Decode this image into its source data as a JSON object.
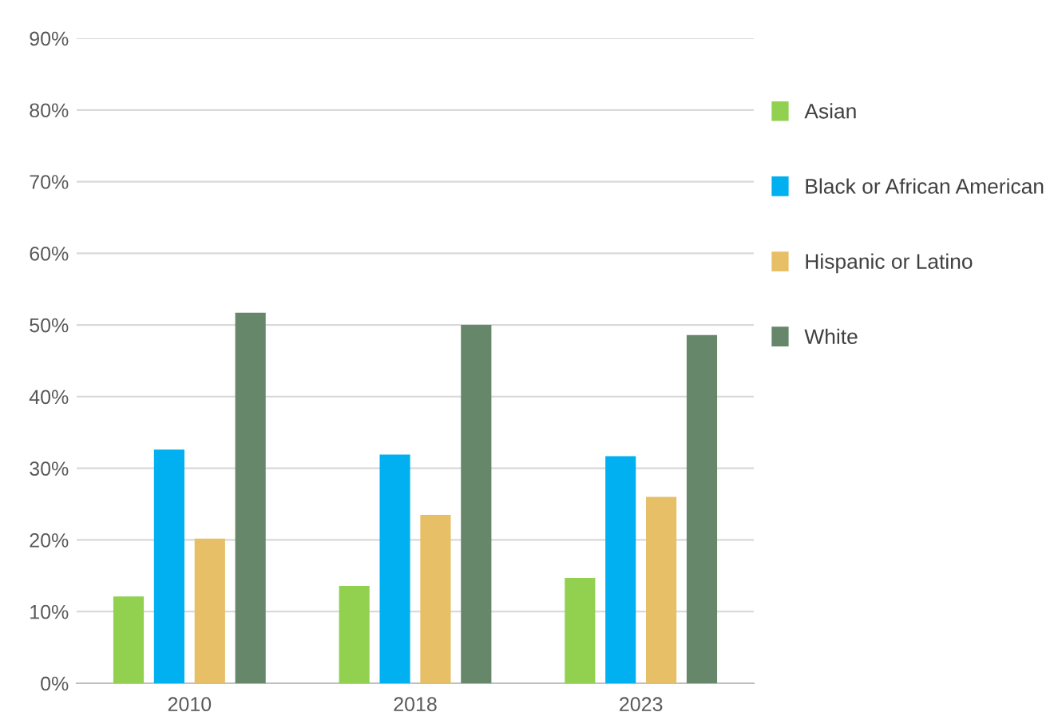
{
  "chart_data": {
    "type": "bar",
    "categories": [
      "2010",
      "2018",
      "2023"
    ],
    "series": [
      {
        "name": "Asian",
        "color": "#92d050",
        "values": [
          12.1,
          13.6,
          14.7
        ]
      },
      {
        "name": "Black or African American",
        "color": "#00b0f0",
        "values": [
          32.6,
          31.9,
          31.7
        ]
      },
      {
        "name": "Hispanic or Latino",
        "color": "#e6bf66",
        "values": [
          20.2,
          23.5,
          26.0
        ]
      },
      {
        "name": "White",
        "color": "#66876a",
        "values": [
          51.7,
          50.0,
          48.6
        ]
      }
    ],
    "ylim": [
      0,
      90
    ],
    "yticks": [
      {
        "value": 0,
        "label": "0%"
      },
      {
        "value": 10,
        "label": "10%"
      },
      {
        "value": 20,
        "label": "20%"
      },
      {
        "value": 30,
        "label": "30%"
      },
      {
        "value": 40,
        "label": "40%"
      },
      {
        "value": 50,
        "label": "50%"
      },
      {
        "value": 60,
        "label": "60%"
      },
      {
        "value": 70,
        "label": "70%"
      },
      {
        "value": 80,
        "label": "80%"
      },
      {
        "value": 90,
        "label": "90%"
      }
    ],
    "grid": "y",
    "legend": "right"
  }
}
